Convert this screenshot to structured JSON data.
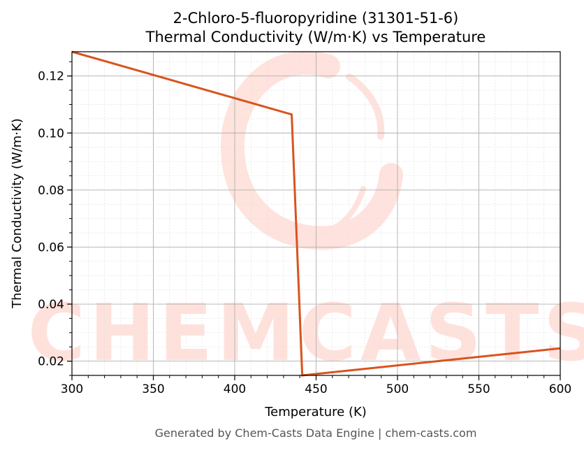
{
  "title_line1": "2-Chloro-5-fluoropyridine (31301-51-6)",
  "title_line2": "Thermal Conductivity (W/m·K) vs Temperature",
  "footer": "Generated by Chem-Casts Data Engine | chem-casts.com",
  "watermark_text": "CHEMCASTS",
  "colors": {
    "line": "#d9531e",
    "watermark": "#ffd9d2",
    "major_grid": "#b0b0b0",
    "minor_grid": "#e2e2e2",
    "axis": "#000000",
    "footer_text": "#555555"
  },
  "chart_data": {
    "type": "line",
    "xlabel": "Temperature (K)",
    "ylabel": "Thermal Conductivity (W/m·K)",
    "xlim": [
      300,
      600
    ],
    "ylim": [
      0.015,
      0.1285
    ],
    "x_ticks": [
      300,
      350,
      400,
      450,
      500,
      550,
      600
    ],
    "y_ticks": [
      0.02,
      0.04,
      0.06,
      0.08,
      0.1,
      0.12
    ],
    "grid": true,
    "minor_grid": true,
    "series": [
      {
        "x": [
          300,
          435,
          441.5,
          600
        ],
        "y": [
          0.1285,
          0.1065,
          0.015,
          0.0245
        ]
      }
    ]
  }
}
